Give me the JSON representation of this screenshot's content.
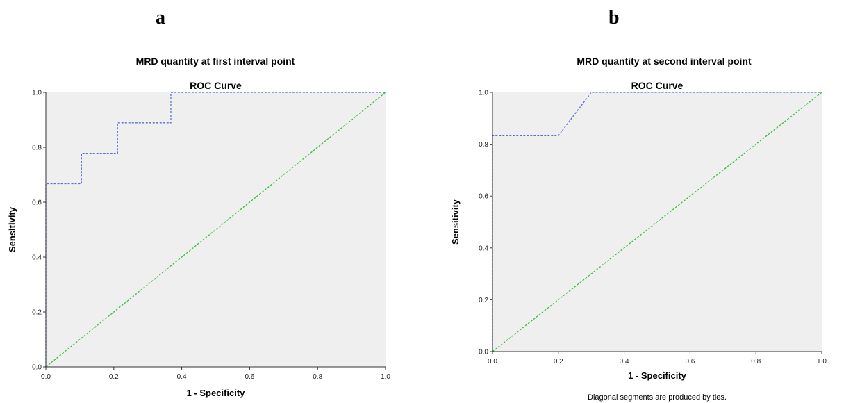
{
  "panels": [
    {
      "letter": "a",
      "heading": "MRD quantity at first interval point"
    },
    {
      "letter": "b",
      "heading": "MRD quantity at second interval point"
    }
  ],
  "colors": {
    "plot_background": "#efefef",
    "roc_curve": "#5b6fd6",
    "reference_line": "#3cbf3c",
    "axis": "#333333"
  },
  "chart_data": [
    {
      "type": "line",
      "title": "ROC Curve",
      "xlabel": "1 - Specificity",
      "ylabel": "Sensitivity",
      "xlim": [
        0,
        1
      ],
      "ylim": [
        0,
        1
      ],
      "xticks": [
        "0.0",
        "0.2",
        "0.4",
        "0.6",
        "0.8",
        "1.0"
      ],
      "yticks": [
        "0.0",
        "0.2",
        "0.4",
        "0.6",
        "0.8",
        "1.0"
      ],
      "grid": false,
      "series": [
        {
          "style": "dashed",
          "color": "#5b6fd6",
          "x": [
            0,
            0,
            0.105,
            0.105,
            0.211,
            0.211,
            0.368,
            0.368,
            1.0
          ],
          "y": [
            0,
            0.667,
            0.667,
            0.778,
            0.778,
            0.889,
            0.889,
            1.0,
            1.0
          ]
        },
        {
          "style": "dashed",
          "color": "#3cbf3c",
          "x": [
            0,
            1
          ],
          "y": [
            0,
            1
          ]
        }
      ],
      "footnote": ""
    },
    {
      "type": "line",
      "title": "ROC Curve",
      "xlabel": "1 - Specificity",
      "ylabel": "Sensitivity",
      "xlim": [
        0,
        1
      ],
      "ylim": [
        0,
        1
      ],
      "xticks": [
        "0.0",
        "0.2",
        "0.4",
        "0.6",
        "0.8",
        "1.0"
      ],
      "yticks": [
        "0.0",
        "0.2",
        "0.4",
        "0.6",
        "0.8",
        "1.0"
      ],
      "grid": false,
      "series": [
        {
          "style": "dashed",
          "color": "#5b6fd6",
          "x": [
            0,
            0,
            0.2,
            0.3,
            1.0
          ],
          "y": [
            0,
            0.833,
            0.833,
            1.0,
            1.0
          ]
        },
        {
          "style": "dashed",
          "color": "#3cbf3c",
          "x": [
            0,
            1
          ],
          "y": [
            0,
            1
          ]
        }
      ],
      "footnote": "Diagonal segments are produced by ties."
    }
  ]
}
